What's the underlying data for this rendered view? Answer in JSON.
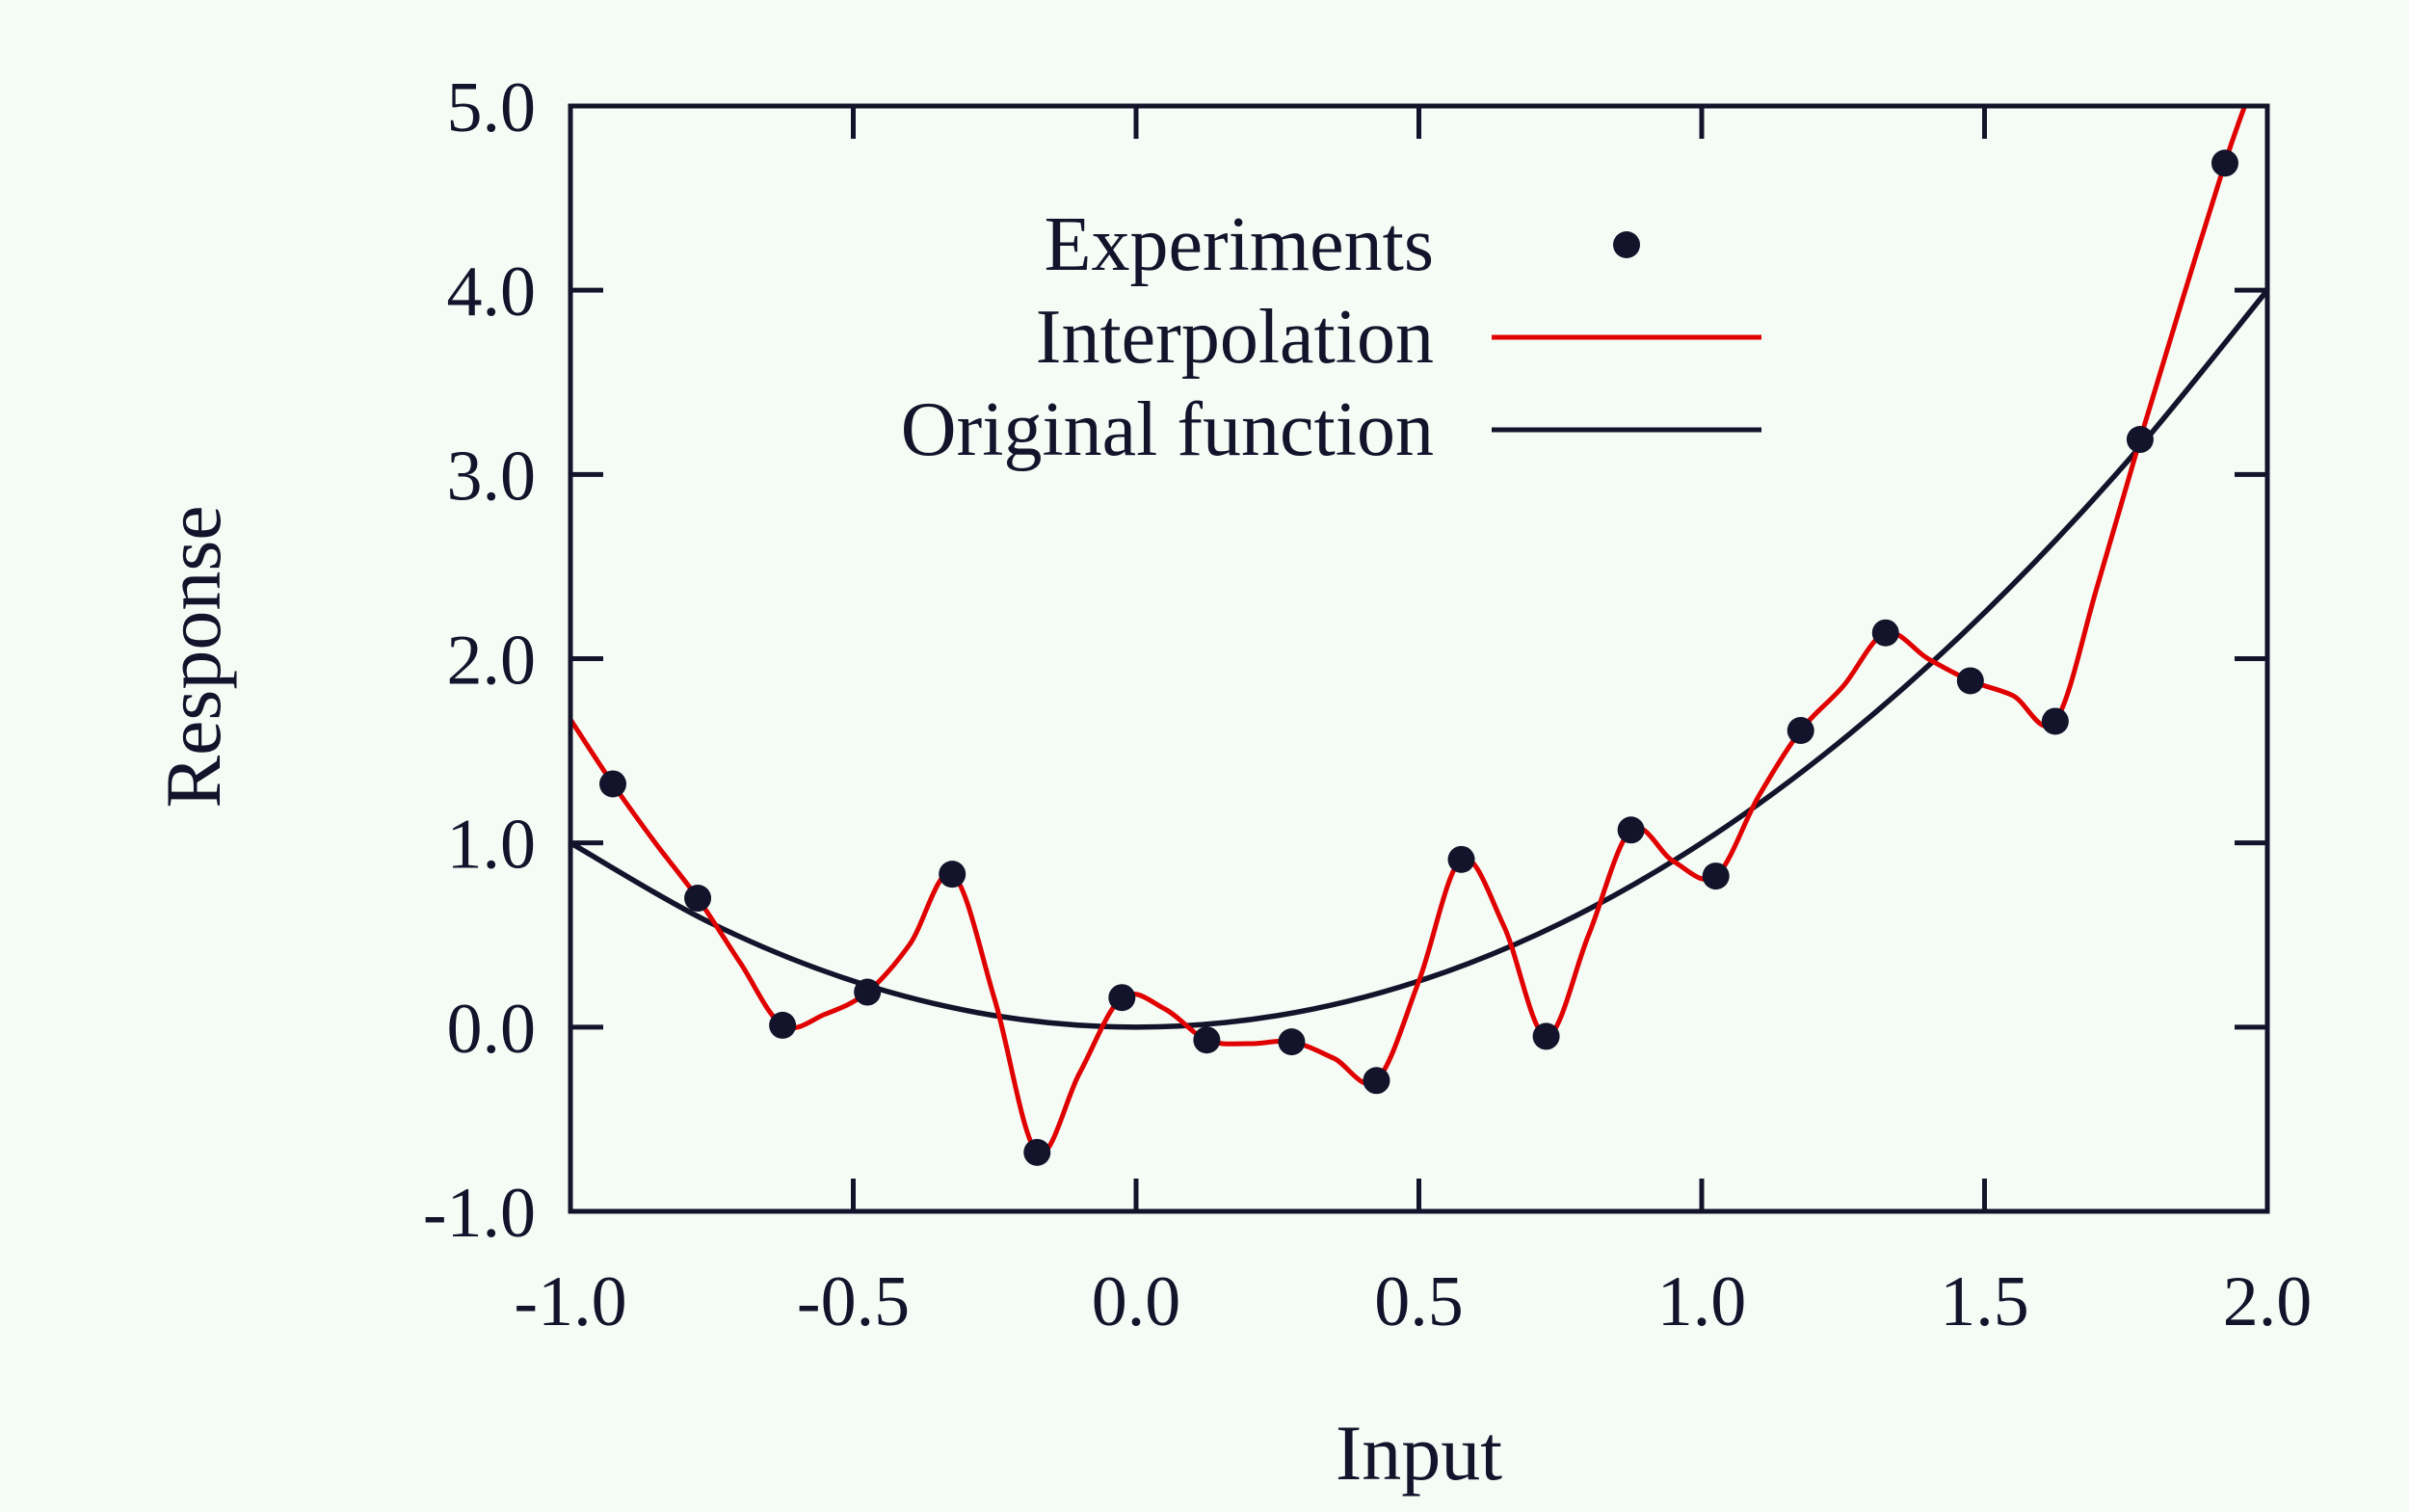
{
  "chart_data": {
    "type": "line",
    "title": "",
    "xlabel": "Input",
    "ylabel": "Response",
    "xlim": [
      -1.0,
      2.0
    ],
    "ylim": [
      -1.0,
      5.0
    ],
    "x_ticks": [
      "-1.0",
      "-0.5",
      "0.0",
      "0.5",
      "1.0",
      "1.5",
      "2.0"
    ],
    "y_ticks": [
      "-1.0",
      "0.0",
      "1.0",
      "2.0",
      "3.0",
      "4.0",
      "5.0"
    ],
    "grid": false,
    "legend_position": "top-right",
    "colors": {
      "background": "#f5fcf5",
      "axis": "#13132b",
      "experiments": "#13132b",
      "interpolation": "#e00000",
      "original": "#13132b"
    },
    "series": [
      {
        "name": "Experiments",
        "kind": "scatter",
        "points": [
          [
            -0.925,
            1.32
          ],
          [
            -0.775,
            0.7
          ],
          [
            -0.625,
            0.01
          ],
          [
            -0.475,
            0.19
          ],
          [
            -0.325,
            0.83
          ],
          [
            -0.175,
            -0.68
          ],
          [
            -0.025,
            0.16
          ],
          [
            0.125,
            -0.07
          ],
          [
            0.275,
            -0.08
          ],
          [
            0.425,
            -0.29
          ],
          [
            0.575,
            0.91
          ],
          [
            0.725,
            -0.05
          ],
          [
            0.875,
            1.07
          ],
          [
            1.025,
            0.82
          ],
          [
            1.175,
            1.61
          ],
          [
            1.325,
            2.14
          ],
          [
            1.475,
            1.88
          ],
          [
            1.625,
            1.66
          ],
          [
            1.775,
            3.19
          ],
          [
            1.925,
            4.69
          ]
        ]
      },
      {
        "name": "Interpolation",
        "kind": "line",
        "points": [
          [
            -1.0,
            1.67
          ],
          [
            -0.925,
            1.32
          ],
          [
            -0.85,
            1.0
          ],
          [
            -0.775,
            0.7
          ],
          [
            -0.7,
            0.35
          ],
          [
            -0.625,
            0.01
          ],
          [
            -0.55,
            0.07
          ],
          [
            -0.475,
            0.19
          ],
          [
            -0.4,
            0.45
          ],
          [
            -0.325,
            0.83
          ],
          [
            -0.25,
            0.15
          ],
          [
            -0.175,
            -0.68
          ],
          [
            -0.1,
            -0.25
          ],
          [
            -0.025,
            0.16
          ],
          [
            0.05,
            0.1
          ],
          [
            0.125,
            -0.07
          ],
          [
            0.2,
            -0.09
          ],
          [
            0.275,
            -0.08
          ],
          [
            0.35,
            -0.17
          ],
          [
            0.425,
            -0.29
          ],
          [
            0.5,
            0.25
          ],
          [
            0.575,
            0.91
          ],
          [
            0.65,
            0.55
          ],
          [
            0.725,
            -0.05
          ],
          [
            0.8,
            0.5
          ],
          [
            0.875,
            1.07
          ],
          [
            0.95,
            0.9
          ],
          [
            1.025,
            0.82
          ],
          [
            1.1,
            1.25
          ],
          [
            1.175,
            1.61
          ],
          [
            1.25,
            1.85
          ],
          [
            1.325,
            2.14
          ],
          [
            1.4,
            2.0
          ],
          [
            1.475,
            1.88
          ],
          [
            1.55,
            1.8
          ],
          [
            1.625,
            1.66
          ],
          [
            1.7,
            2.4
          ],
          [
            1.775,
            3.19
          ],
          [
            1.85,
            3.95
          ],
          [
            1.925,
            4.69
          ],
          [
            1.96,
            5.0
          ]
        ]
      },
      {
        "name": "Original function",
        "kind": "function",
        "formula": "y = x^2",
        "points": [
          [
            -1.0,
            1.0
          ],
          [
            -0.75,
            0.5625
          ],
          [
            -0.5,
            0.25
          ],
          [
            -0.25,
            0.0625
          ],
          [
            0.0,
            0.0
          ],
          [
            0.25,
            0.0625
          ],
          [
            0.5,
            0.25
          ],
          [
            0.75,
            0.5625
          ],
          [
            1.0,
            1.0
          ],
          [
            1.25,
            1.5625
          ],
          [
            1.5,
            2.25
          ],
          [
            1.75,
            3.0625
          ],
          [
            2.0,
            4.0
          ]
        ]
      }
    ]
  }
}
